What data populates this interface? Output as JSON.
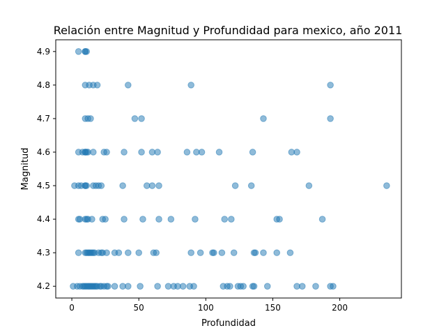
{
  "chart_data": {
    "type": "scatter",
    "title": "Relación entre Magnitud y Profundidad para mexico, año 2011",
    "xlabel": "Profundidad",
    "ylabel": "Magnitud",
    "xlim": [
      -12,
      246
    ],
    "ylim": [
      4.165,
      4.935
    ],
    "x_ticks": [
      0,
      50,
      100,
      150,
      200
    ],
    "y_ticks": [
      4.2,
      4.3,
      4.4,
      4.5,
      4.6,
      4.7,
      4.8,
      4.9
    ],
    "grid": false,
    "legend": "none",
    "marker_color": "#1f77b4",
    "marker_alpha": 0.5,
    "points": [
      [
        5,
        4.9
      ],
      [
        10,
        4.9
      ],
      [
        10,
        4.9
      ],
      [
        11,
        4.9
      ],
      [
        10,
        4.8
      ],
      [
        13,
        4.8
      ],
      [
        16,
        4.8
      ],
      [
        19,
        4.8
      ],
      [
        42,
        4.8
      ],
      [
        89,
        4.8
      ],
      [
        193,
        4.8
      ],
      [
        10,
        4.7
      ],
      [
        12,
        4.7
      ],
      [
        14,
        4.7
      ],
      [
        47,
        4.7
      ],
      [
        52,
        4.7
      ],
      [
        143,
        4.7
      ],
      [
        193,
        4.7
      ],
      [
        5,
        4.6
      ],
      [
        8,
        4.6
      ],
      [
        10,
        4.6
      ],
      [
        10,
        4.6
      ],
      [
        11,
        4.6
      ],
      [
        12,
        4.6
      ],
      [
        16,
        4.6
      ],
      [
        24,
        4.6
      ],
      [
        26,
        4.6
      ],
      [
        39,
        4.6
      ],
      [
        52,
        4.6
      ],
      [
        60,
        4.6
      ],
      [
        64,
        4.6
      ],
      [
        86,
        4.6
      ],
      [
        93,
        4.6
      ],
      [
        97,
        4.6
      ],
      [
        110,
        4.6
      ],
      [
        135,
        4.6
      ],
      [
        164,
        4.6
      ],
      [
        168,
        4.6
      ],
      [
        2,
        4.5
      ],
      [
        5,
        4.5
      ],
      [
        7,
        4.5
      ],
      [
        10,
        4.5
      ],
      [
        10,
        4.5
      ],
      [
        11,
        4.5
      ],
      [
        16,
        4.5
      ],
      [
        18,
        4.5
      ],
      [
        20,
        4.5
      ],
      [
        22,
        4.5
      ],
      [
        38,
        4.5
      ],
      [
        56,
        4.5
      ],
      [
        60,
        4.5
      ],
      [
        65,
        4.5
      ],
      [
        122,
        4.5
      ],
      [
        134,
        4.5
      ],
      [
        177,
        4.5
      ],
      [
        235,
        4.5
      ],
      [
        5,
        4.4
      ],
      [
        6,
        4.4
      ],
      [
        10,
        4.4
      ],
      [
        11,
        4.4
      ],
      [
        12,
        4.4
      ],
      [
        15,
        4.4
      ],
      [
        23,
        4.4
      ],
      [
        25,
        4.4
      ],
      [
        39,
        4.4
      ],
      [
        53,
        4.4
      ],
      [
        65,
        4.4
      ],
      [
        74,
        4.4
      ],
      [
        92,
        4.4
      ],
      [
        114,
        4.4
      ],
      [
        119,
        4.4
      ],
      [
        153,
        4.4
      ],
      [
        155,
        4.4
      ],
      [
        187,
        4.4
      ],
      [
        5,
        4.3
      ],
      [
        10,
        4.3
      ],
      [
        11,
        4.3
      ],
      [
        12,
        4.3
      ],
      [
        13,
        4.3
      ],
      [
        14,
        4.3
      ],
      [
        15,
        4.3
      ],
      [
        16,
        4.3
      ],
      [
        17,
        4.3
      ],
      [
        20,
        4.3
      ],
      [
        22,
        4.3
      ],
      [
        23,
        4.3
      ],
      [
        26,
        4.3
      ],
      [
        32,
        4.3
      ],
      [
        35,
        4.3
      ],
      [
        42,
        4.3
      ],
      [
        50,
        4.3
      ],
      [
        61,
        4.3
      ],
      [
        63,
        4.3
      ],
      [
        89,
        4.3
      ],
      [
        96,
        4.3
      ],
      [
        105,
        4.3
      ],
      [
        106,
        4.3
      ],
      [
        112,
        4.3
      ],
      [
        121,
        4.3
      ],
      [
        136,
        4.3
      ],
      [
        137,
        4.3
      ],
      [
        143,
        4.3
      ],
      [
        153,
        4.3
      ],
      [
        163,
        4.3
      ],
      [
        1,
        4.2
      ],
      [
        4,
        4.2
      ],
      [
        6,
        4.2
      ],
      [
        8,
        4.2
      ],
      [
        9,
        4.2
      ],
      [
        10,
        4.2
      ],
      [
        11,
        4.2
      ],
      [
        12,
        4.2
      ],
      [
        13,
        4.2
      ],
      [
        14,
        4.2
      ],
      [
        15,
        4.2
      ],
      [
        16,
        4.2
      ],
      [
        17,
        4.2
      ],
      [
        18,
        4.2
      ],
      [
        19,
        4.2
      ],
      [
        21,
        4.2
      ],
      [
        22,
        4.2
      ],
      [
        24,
        4.2
      ],
      [
        26,
        4.2
      ],
      [
        27,
        4.2
      ],
      [
        32,
        4.2
      ],
      [
        38,
        4.2
      ],
      [
        42,
        4.2
      ],
      [
        51,
        4.2
      ],
      [
        64,
        4.2
      ],
      [
        72,
        4.2
      ],
      [
        76,
        4.2
      ],
      [
        79,
        4.2
      ],
      [
        83,
        4.2
      ],
      [
        88,
        4.2
      ],
      [
        91,
        4.2
      ],
      [
        113,
        4.2
      ],
      [
        116,
        4.2
      ],
      [
        118,
        4.2
      ],
      [
        124,
        4.2
      ],
      [
        126,
        4.2
      ],
      [
        128,
        4.2
      ],
      [
        135,
        4.2
      ],
      [
        136,
        4.2
      ],
      [
        146,
        4.2
      ],
      [
        168,
        4.2
      ],
      [
        172,
        4.2
      ],
      [
        182,
        4.2
      ],
      [
        193,
        4.2
      ],
      [
        195,
        4.2
      ]
    ]
  }
}
